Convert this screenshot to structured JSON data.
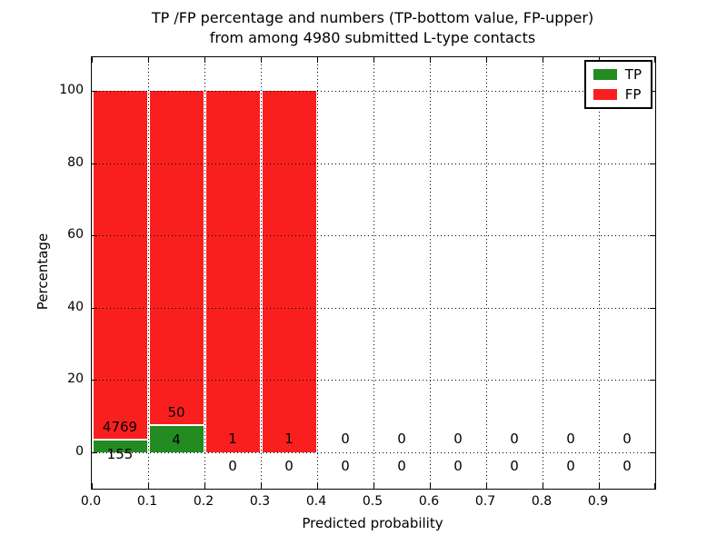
{
  "title": {
    "line1": "TP /FP percentage and numbers (TP-bottom value, FP-upper)",
    "line2": "from among 4980 submitted L-type contacts"
  },
  "axis_labels": {
    "x": "Predicted probability",
    "y": "Percentage"
  },
  "legend": {
    "items": [
      {
        "label": "TP",
        "color": "#228b22"
      },
      {
        "label": "FP",
        "color": "#fa1f1f"
      }
    ]
  },
  "chart_data": {
    "type": "bar",
    "stacked": true,
    "title": "TP /FP percentage and numbers (TP-bottom value, FP-upper) from among 4980 submitted L-type contacts",
    "xlabel": "Predicted probability",
    "ylabel": "Percentage",
    "xlim": [
      0.0,
      1.0
    ],
    "ylim": [
      -10,
      109
    ],
    "grid": "dotted",
    "legend_position": "upper right",
    "total_submitted_contacts": 4980,
    "bin_width": 0.1,
    "bin_starts": [
      0.0,
      0.1,
      0.2,
      0.3,
      0.4,
      0.5,
      0.6,
      0.7,
      0.8,
      0.9
    ],
    "xticks": [
      "0.0",
      "0.1",
      "0.2",
      "0.3",
      "0.4",
      "0.5",
      "0.6",
      "0.7",
      "0.8",
      "0.9"
    ],
    "yticks": [
      0,
      20,
      40,
      60,
      80,
      100
    ],
    "series": [
      {
        "name": "TP",
        "color": "#228b22",
        "counts": [
          155,
          4,
          0,
          0,
          0,
          0,
          0,
          0,
          0,
          0
        ],
        "percent": [
          3.15,
          7.41,
          0,
          0,
          0,
          0,
          0,
          0,
          0,
          0
        ]
      },
      {
        "name": "FP",
        "color": "#fa1f1f",
        "counts": [
          4769,
          50,
          1,
          1,
          0,
          0,
          0,
          0,
          0,
          0
        ],
        "percent": [
          96.85,
          92.59,
          100,
          100,
          0,
          0,
          0,
          0,
          0,
          0
        ]
      }
    ]
  }
}
